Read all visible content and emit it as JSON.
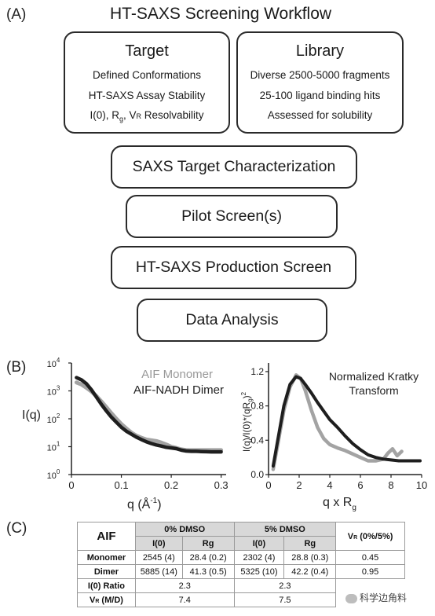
{
  "panel_a": {
    "label": "(A)",
    "title": "HT-SAXS Screening Workflow",
    "target": {
      "title": "Target",
      "lines": [
        "Defined Conformations",
        "HT-SAXS Assay Stability",
        "I(0), R",
        "g",
        ", V",
        "R",
        " Resolvability"
      ]
    },
    "library": {
      "title": "Library",
      "lines": [
        "Diverse 2500-5000 fragments",
        "25-100 ligand binding hits",
        "Assessed for solubility"
      ]
    },
    "steps": [
      "SAXS Target Characterization",
      "Pilot Screen(s)",
      "HT-SAXS Production Screen",
      "Data Analysis"
    ]
  },
  "panel_b": {
    "label": "(B)",
    "left_legend": [
      "AIF Monomer",
      "AIF-NADH Dimer"
    ],
    "right_title": [
      "Normalized Kratky",
      "Transform"
    ]
  },
  "chart_data": [
    {
      "type": "line",
      "ylabel": "I(q)",
      "xlabel": "q (Å-1)",
      "xlabel_main": "q (Å",
      "xlabel_sup": "-1",
      "xlabel_close": ")",
      "x_ticks": [
        "0",
        "0.1",
        "0.2",
        "0.3"
      ],
      "y_ticks": [
        {
          "base": "10",
          "exp": "4"
        },
        {
          "base": "10",
          "exp": "3"
        },
        {
          "base": "10",
          "exp": "2"
        },
        {
          "base": "10",
          "exp": "1"
        },
        {
          "base": "10",
          "exp": "0"
        }
      ],
      "xlim": [
        0,
        0.31
      ],
      "ylim_log10": [
        0,
        4
      ],
      "yscale": "log",
      "legend_position": "top-right",
      "series": [
        {
          "name": "AIF Monomer",
          "color": "#a3a3a3",
          "x": [
            0.01,
            0.02,
            0.03,
            0.04,
            0.05,
            0.06,
            0.07,
            0.08,
            0.09,
            0.1,
            0.11,
            0.12,
            0.13,
            0.14,
            0.15,
            0.16,
            0.17,
            0.18,
            0.19,
            0.2,
            0.21,
            0.22,
            0.23,
            0.24,
            0.25,
            0.26,
            0.27,
            0.28,
            0.29,
            0.3
          ],
          "y": [
            2000,
            1700,
            1300,
            950,
            650,
            420,
            260,
            160,
            100,
            65,
            45,
            32,
            25,
            21,
            18,
            17,
            16,
            14,
            12,
            10,
            9,
            8,
            7.5,
            7.5,
            7.5,
            7.5,
            7.5,
            7.5,
            7.5,
            7.5
          ]
        },
        {
          "name": "AIF-NADH Dimer",
          "color": "#1e1e1e",
          "x": [
            0.01,
            0.02,
            0.03,
            0.04,
            0.05,
            0.06,
            0.07,
            0.08,
            0.09,
            0.1,
            0.11,
            0.12,
            0.13,
            0.14,
            0.15,
            0.16,
            0.17,
            0.18,
            0.19,
            0.2,
            0.21,
            0.22,
            0.23,
            0.24,
            0.25,
            0.26,
            0.27,
            0.28,
            0.29,
            0.3
          ],
          "y": [
            3000,
            2500,
            1800,
            1100,
            600,
            330,
            190,
            115,
            75,
            50,
            36,
            28,
            22,
            18,
            15,
            13,
            11.5,
            10.5,
            9.5,
            9,
            8.5,
            7.5,
            7,
            6.8,
            6.8,
            6.7,
            6.6,
            6.5,
            6.5,
            6.5
          ]
        }
      ]
    },
    {
      "type": "line",
      "ylabel": "I(q)/I(0)*(qRg)2",
      "ylabel_parts": [
        "I(q)/I(0)*(qR",
        "g",
        ")",
        "2"
      ],
      "xlabel": "q x Rg",
      "xlabel_parts": [
        "q x R",
        "g"
      ],
      "title": "Normalized Kratky Transform",
      "x_ticks": [
        "0",
        "2",
        "4",
        "6",
        "8",
        "10"
      ],
      "y_ticks": [
        "0.0",
        "0.4",
        "0.8",
        "1.2"
      ],
      "xlim": [
        0,
        10
      ],
      "ylim": [
        0,
        1.3
      ],
      "legend_position": "none",
      "series": [
        {
          "name": "AIF Monomer",
          "color": "#a3a3a3",
          "x": [
            0.3,
            0.6,
            1.0,
            1.4,
            1.8,
            2.1,
            2.4,
            2.8,
            3.2,
            3.6,
            4.0,
            4.5,
            5.0,
            5.5,
            6.0,
            6.5,
            7.0,
            7.5,
            7.8,
            8.1,
            8.4,
            8.7
          ],
          "y": [
            0.06,
            0.35,
            0.75,
            1.02,
            1.16,
            1.12,
            0.98,
            0.75,
            0.55,
            0.42,
            0.35,
            0.31,
            0.28,
            0.24,
            0.2,
            0.16,
            0.16,
            0.18,
            0.25,
            0.3,
            0.22,
            0.27
          ]
        },
        {
          "name": "AIF-NADH Dimer",
          "color": "#1e1e1e",
          "x": [
            0.3,
            0.6,
            1.0,
            1.4,
            1.8,
            2.1,
            2.4,
            2.8,
            3.2,
            3.6,
            4.0,
            4.5,
            5.0,
            5.5,
            6.0,
            6.5,
            7.0,
            7.5,
            8.0,
            8.5,
            9.0,
            9.5,
            9.9
          ],
          "y": [
            0.1,
            0.4,
            0.8,
            1.05,
            1.14,
            1.12,
            1.05,
            0.95,
            0.84,
            0.74,
            0.64,
            0.55,
            0.45,
            0.36,
            0.29,
            0.23,
            0.2,
            0.18,
            0.17,
            0.16,
            0.16,
            0.16,
            0.16
          ]
        }
      ]
    },
    {
      "type": "table",
      "corner": "AIF",
      "groups": [
        "0% DMSO",
        "5% DMSO"
      ],
      "subheaders": [
        "I(0)",
        "Rg",
        "I(0)",
        "Rg"
      ],
      "vr_header": [
        "V",
        "R",
        " (0%/5%)"
      ],
      "rows": [
        {
          "label": "Monomer",
          "cells": [
            "2545 (4)",
            "28.4 (0.2)",
            "2302 (4)",
            "28.8 (0.3)",
            "0.45"
          ]
        },
        {
          "label": "Dimer",
          "cells": [
            "5885 (14)",
            "41.3 (0.5)",
            "5325 (10)",
            "42.2 (0.4)",
            "0.95"
          ]
        }
      ],
      "ratio_rows": [
        {
          "label": "I(0) Ratio",
          "values": [
            "2.3",
            "2.3"
          ]
        },
        {
          "label_parts": [
            "V",
            "R",
            " (M/D)"
          ],
          "values": [
            "7.4",
            "7.5"
          ]
        }
      ]
    }
  ],
  "panel_c": {
    "label": "(C)"
  },
  "watermark": {
    "text": "科学边角料"
  }
}
